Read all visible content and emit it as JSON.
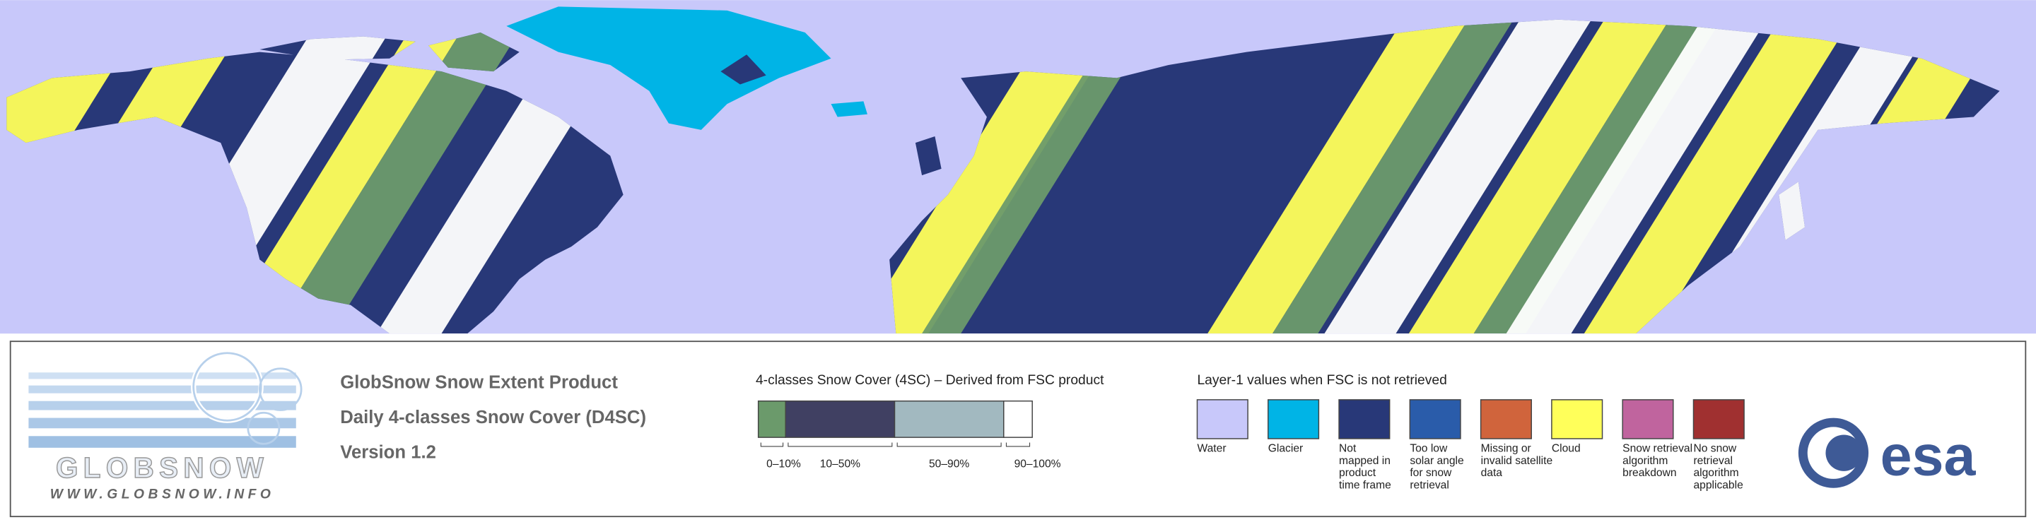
{
  "logo": {
    "name": "GLOBSNOW",
    "url": "WWW.GLOBSNOW.INFO"
  },
  "product": {
    "lines": [
      "GlobSnow Snow Extent Product",
      "Daily 4-classes Snow Cover (D4SC)",
      "Version 1.2"
    ]
  },
  "classes": {
    "title": "4-classes Snow Cover (4SC) – Derived from FSC product",
    "items": [
      {
        "label": "0–10%",
        "color": "#6b9a6b"
      },
      {
        "label": "10–50%",
        "color": "#404062"
      },
      {
        "label": "50–90%",
        "color": "#a2b9c0"
      },
      {
        "label": "90–100%",
        "color": "#ffffff"
      }
    ]
  },
  "layer1": {
    "title": "Layer-1 values when FSC is not retrieved",
    "items": [
      {
        "lines": [
          "Water"
        ],
        "color": "#c8c8fa"
      },
      {
        "lines": [
          "Glacier"
        ],
        "color": "#00b4e6"
      },
      {
        "lines": [
          "Not",
          "mapped in",
          "product",
          "time frame"
        ],
        "color": "#283878"
      },
      {
        "lines": [
          "Too low",
          "solar angle",
          "for snow",
          "retrieval"
        ],
        "color": "#2a5caa"
      },
      {
        "lines": [
          "Missing or",
          "invalid satellite",
          "data"
        ],
        "color": "#d0643c"
      },
      {
        "lines": [
          "Cloud"
        ],
        "color": "#ffff5a"
      },
      {
        "lines": [
          "Snow retrieval",
          "algorithm",
          "breakdown"
        ],
        "color": "#c0649e"
      },
      {
        "lines": [
          "No snow",
          "retrieval",
          "algorithm",
          "applicable"
        ],
        "color": "#a03030"
      }
    ]
  },
  "agency": "esa"
}
